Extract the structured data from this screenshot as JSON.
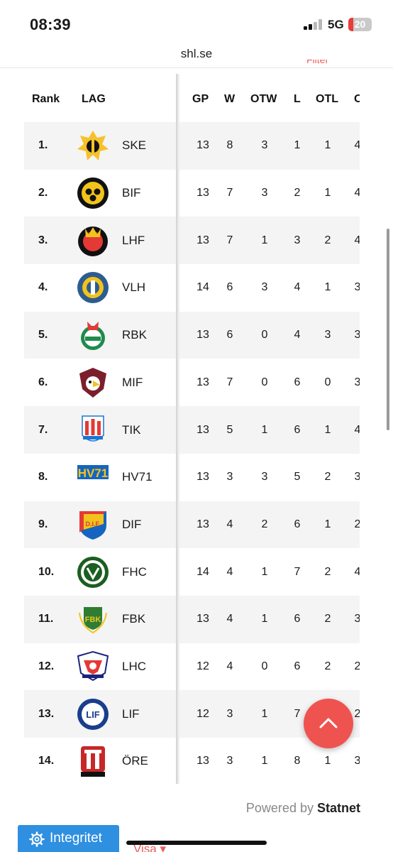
{
  "status": {
    "time": "08:39",
    "network": "5G",
    "battery": "20",
    "battery_level": 0.2
  },
  "browser": {
    "url": "shl.se"
  },
  "filter_label": "Filter",
  "table": {
    "headers": {
      "rank": "Rank",
      "team": "LAG",
      "gp": "GP",
      "w": "W",
      "otw": "OTW",
      "l": "L",
      "otl": "OTL",
      "next": "O"
    },
    "rows": [
      {
        "rank": "1.",
        "team": "SKE",
        "gp": "13",
        "w": "8",
        "otw": "3",
        "l": "1",
        "otl": "1",
        "next": "4",
        "logo": "skelleftea-logo"
      },
      {
        "rank": "2.",
        "team": "BIF",
        "gp": "13",
        "w": "7",
        "otw": "3",
        "l": "2",
        "otl": "1",
        "next": "4",
        "logo": "brynas-logo"
      },
      {
        "rank": "3.",
        "team": "LHF",
        "gp": "13",
        "w": "7",
        "otw": "1",
        "l": "3",
        "otl": "2",
        "next": "4",
        "logo": "lulea-logo"
      },
      {
        "rank": "4.",
        "team": "VLH",
        "gp": "14",
        "w": "6",
        "otw": "3",
        "l": "4",
        "otl": "1",
        "next": "3",
        "logo": "vaxjo-logo"
      },
      {
        "rank": "5.",
        "team": "RBK",
        "gp": "13",
        "w": "6",
        "otw": "0",
        "l": "4",
        "otl": "3",
        "next": "3",
        "logo": "rogle-logo"
      },
      {
        "rank": "6.",
        "team": "MIF",
        "gp": "13",
        "w": "7",
        "otw": "0",
        "l": "6",
        "otl": "0",
        "next": "3",
        "logo": "malmo-logo"
      },
      {
        "rank": "7.",
        "team": "TIK",
        "gp": "13",
        "w": "5",
        "otw": "1",
        "l": "6",
        "otl": "1",
        "next": "4",
        "logo": "timra-logo"
      },
      {
        "rank": "8.",
        "team": "HV71",
        "gp": "13",
        "w": "3",
        "otw": "3",
        "l": "5",
        "otl": "2",
        "next": "3",
        "logo": "hv71-logo"
      },
      {
        "rank": "9.",
        "team": "DIF",
        "gp": "13",
        "w": "4",
        "otw": "2",
        "l": "6",
        "otl": "1",
        "next": "2",
        "logo": "djurgarden-logo"
      },
      {
        "rank": "10.",
        "team": "FHC",
        "gp": "14",
        "w": "4",
        "otw": "1",
        "l": "7",
        "otl": "2",
        "next": "4",
        "logo": "frolunda-logo"
      },
      {
        "rank": "11.",
        "team": "FBK",
        "gp": "13",
        "w": "4",
        "otw": "1",
        "l": "6",
        "otl": "2",
        "next": "3",
        "logo": "farjestad-logo"
      },
      {
        "rank": "12.",
        "team": "LHC",
        "gp": "12",
        "w": "4",
        "otw": "0",
        "l": "6",
        "otl": "2",
        "next": "2",
        "logo": "linkoping-logo"
      },
      {
        "rank": "13.",
        "team": "LIF",
        "gp": "12",
        "w": "3",
        "otw": "1",
        "l": "7",
        "otl": "2",
        "next": "2",
        "logo": "leksand-logo"
      },
      {
        "rank": "14.",
        "team": "ÖRE",
        "gp": "13",
        "w": "3",
        "otw": "1",
        "l": "8",
        "otl": "1",
        "next": "3",
        "logo": "orebro-logo"
      }
    ]
  },
  "powered": {
    "prefix": "Powered by",
    "brand": "Statnet"
  },
  "integrity_label": "Integritet",
  "visa_label": "Visa ▾",
  "colors": {
    "accent": "#ef5350",
    "link": "#2f8fe0",
    "row_alt": "#f4f4f4"
  }
}
